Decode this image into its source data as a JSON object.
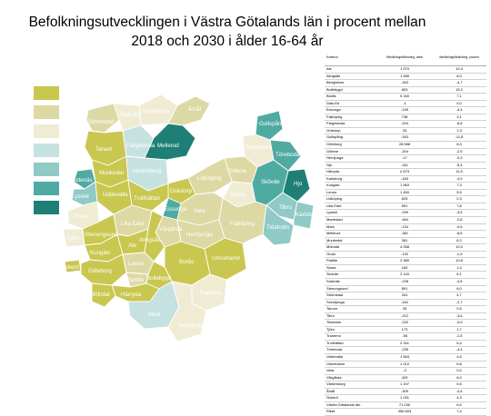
{
  "title": "Befolkningsutvecklingen i Västra Götalands län i procent mellan 2018 och 2030 i ålder 16-64 år",
  "colors": {
    "c1": "#c9c74f",
    "c2": "#ddd9a4",
    "c3": "#f0ecd4",
    "c4": "#c6e2e0",
    "c5": "#8fcac6",
    "c6": "#4faaa2",
    "c7": "#1e7f77"
  },
  "legend": [
    {
      "key": "c1",
      "label": ""
    },
    {
      "key": "c2",
      "label": ""
    },
    {
      "key": "c3",
      "label": ""
    },
    {
      "key": "c4",
      "label": ""
    },
    {
      "key": "c5",
      "label": ""
    },
    {
      "key": "c6",
      "label": ""
    },
    {
      "key": "c7",
      "label": ""
    }
  ],
  "map": {
    "municipalities": [
      {
        "name": "Strömstad",
        "color": "c2"
      },
      {
        "name": "Dals-Ed",
        "color": "c3"
      },
      {
        "name": "Bengtsfors",
        "color": "c3"
      },
      {
        "name": "Åmål",
        "color": "c2"
      },
      {
        "name": "Gullspång",
        "color": "c6"
      },
      {
        "name": "Tanum",
        "color": "c1"
      },
      {
        "name": "Färgelanda",
        "color": "c4"
      },
      {
        "name": "Mellerud",
        "color": "c7"
      },
      {
        "name": "Mariestad",
        "color": "c3"
      },
      {
        "name": "Töreboda",
        "color": "c6"
      },
      {
        "name": "Munkedal",
        "color": "c1"
      },
      {
        "name": "Vänersborg",
        "color": "c4"
      },
      {
        "name": "Götene",
        "color": "c2"
      },
      {
        "name": "Sotenäs",
        "color": "c6"
      },
      {
        "name": "Lysekil",
        "color": "c5"
      },
      {
        "name": "Uddevalla",
        "color": "c1"
      },
      {
        "name": "Grästorp",
        "color": "c1"
      },
      {
        "name": "Lidköping",
        "color": "c2"
      },
      {
        "name": "Skara",
        "color": "c3"
      },
      {
        "name": "Skövde",
        "color": "c6"
      },
      {
        "name": "Hjo",
        "color": "c7"
      },
      {
        "name": "Orust",
        "color": "c3"
      },
      {
        "name": "Trollhättan",
        "color": "c1"
      },
      {
        "name": "Essunga",
        "color": "c6"
      },
      {
        "name": "Tibro",
        "color": "c5"
      },
      {
        "name": "Vara",
        "color": "c2"
      },
      {
        "name": "Karlsborg",
        "color": "c5"
      },
      {
        "name": "Tjörn",
        "color": "c3"
      },
      {
        "name": "Stenungsund",
        "color": "c1"
      },
      {
        "name": "Lilla Edet",
        "color": "c2"
      },
      {
        "name": "Falköping",
        "color": "c2"
      },
      {
        "name": "Tidaholm",
        "color": "c5"
      },
      {
        "name": "Kungälv",
        "color": "c1"
      },
      {
        "name": "Ale",
        "color": "c1"
      },
      {
        "name": "Vårgårda",
        "color": "c2"
      },
      {
        "name": "Alingsås",
        "color": "c1"
      },
      {
        "name": "Herrljunga",
        "color": "c2"
      },
      {
        "name": "Öckerö",
        "color": "c1"
      },
      {
        "name": "Göteborg",
        "color": "c1"
      },
      {
        "name": "Lerum",
        "color": "c2"
      },
      {
        "name": "Borås",
        "color": "c1"
      },
      {
        "name": "Ulricehamn",
        "color": "c1"
      },
      {
        "name": "Partille",
        "color": "c2"
      },
      {
        "name": "Bollebygd",
        "color": "c1"
      },
      {
        "name": "Härryda",
        "color": "c1"
      },
      {
        "name": "Mölndal",
        "color": "c1"
      },
      {
        "name": "Mark",
        "color": "c4"
      },
      {
        "name": "Tranemo",
        "color": "c3"
      },
      {
        "name": "Svenljunga",
        "color": "c3"
      }
    ]
  },
  "table": {
    "headers": [
      "Kommun",
      "Befolkningsförändring, antal",
      "Befolkningsförändring, procent"
    ],
    "rows": [
      [
        "Ale",
        "1 570",
        "10,4"
      ],
      [
        "Alingsås",
        "1 596",
        "6,0"
      ],
      [
        "Bengtsfors",
        "-263",
        "-4,7"
      ],
      [
        "Bollebygd",
        "803",
        "15,2"
      ],
      [
        "Borås",
        "5 160",
        "7,1"
      ],
      [
        "Dals-Ed",
        "-1",
        "0,0"
      ],
      [
        "Essunga",
        "-145",
        "-4,4"
      ],
      [
        "Falköping",
        "738",
        "3,1"
      ],
      [
        "Färgelanda",
        "-224",
        "-6,8"
      ],
      [
        "Grästorp",
        "33",
        "1,3"
      ],
      [
        "Gullspång",
        "-343",
        "-11,8"
      ],
      [
        "Göteborg",
        "28 588",
        "8,3"
      ],
      [
        "Götene",
        "-204",
        "-2,5"
      ],
      [
        "Herrljunga",
        "-17",
        "-0,3"
      ],
      [
        "Hjo",
        "-311",
        "-5,4"
      ],
      [
        "Härryda",
        "2 673",
        "11,5"
      ],
      [
        "Karlsborg",
        "-183",
        "-4,9"
      ],
      [
        "Kungälv",
        "1 963",
        "7,3"
      ],
      [
        "Lerum",
        "1 450",
        "5,5"
      ],
      [
        "Lidköping",
        "625",
        "2,3"
      ],
      [
        "Lilla Edet",
        "591",
        "7,8"
      ],
      [
        "Lysekil",
        "-299",
        "-3,5"
      ],
      [
        "Mariestad",
        "-464",
        "-2,8"
      ],
      [
        "Mark",
        "-134",
        "-0,6"
      ],
      [
        "Mellerud",
        "-381",
        "-8,6"
      ],
      [
        "Munkedal",
        "381",
        "6,2"
      ],
      [
        "Mölndal",
        "4 058",
        "10,0"
      ],
      [
        "Orust",
        "-132",
        "-1,5"
      ],
      [
        "Partille",
        "2 389",
        "10,8"
      ],
      [
        "Skara",
        "160",
        "1,4"
      ],
      [
        "Skövde",
        "2 116",
        "6,1"
      ],
      [
        "Sotenäs",
        "-228",
        "-4,5"
      ],
      [
        "Stenungsund",
        "891",
        "6,0"
      ],
      [
        "Strömstad",
        "341",
        "4,7"
      ],
      [
        "Svenljunga",
        "-162",
        "-2,7"
      ],
      [
        "Tanum",
        "33",
        "0,5"
      ],
      [
        "Tibro",
        "-212",
        "-3,6"
      ],
      [
        "Tidaholm",
        "-232",
        "-3,0"
      ],
      [
        "Tjörn",
        "173",
        "1,7"
      ],
      [
        "Tranemo",
        "-98",
        "-1,5"
      ],
      [
        "Trollhättan",
        "2 341",
        "6,4"
      ],
      [
        "Töreboda",
        "-235",
        "-4,4"
      ],
      [
        "Uddevalla",
        "1 563",
        "4,6"
      ],
      [
        "Ulricehamn",
        "1 012",
        "6,8"
      ],
      [
        "Vara",
        "-3",
        "0,0"
      ],
      [
        "Vårgårda",
        "429",
        "6,0"
      ],
      [
        "Vänersborg",
        "1 197",
        "5,5"
      ],
      [
        "Åmål",
        "-309",
        "-4,5"
      ],
      [
        "Öckerö",
        "1 031",
        "4,3"
      ],
      [
        "Västra Götalands län",
        "71 030",
        "6,5"
      ],
      [
        "Riket",
        "456 803",
        "7,4"
      ]
    ]
  }
}
